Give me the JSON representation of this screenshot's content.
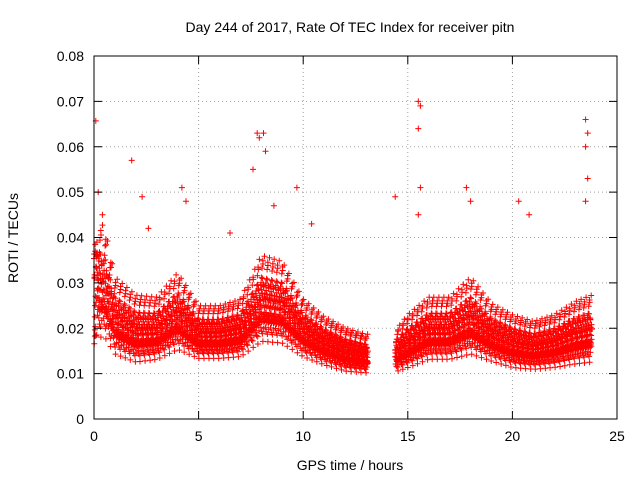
{
  "chart_data": {
    "type": "scatter",
    "title": "Day 244 of 2017, Rate Of TEC Index for receiver pitn",
    "xlabel": "GPS time / hours",
    "ylabel": "ROTI / TECUs",
    "xlim": [
      0,
      25
    ],
    "ylim": [
      0,
      0.08
    ],
    "x_ticks": [
      0,
      5,
      10,
      15,
      20,
      25
    ],
    "x_tick_labels": [
      "0",
      "5",
      "10",
      "15",
      "20",
      "25"
    ],
    "y_ticks": [
      0,
      0.01,
      0.02,
      0.03,
      0.04,
      0.05,
      0.06,
      0.07,
      0.08
    ],
    "y_tick_labels": [
      "0",
      "0.01",
      "0.02",
      "0.03",
      "0.04",
      "0.05",
      "0.06",
      "0.07",
      "0.08"
    ],
    "grid": true,
    "marker": "+",
    "color": "#ff0000",
    "data_gaps_hours": [
      [
        13.1,
        14.4
      ]
    ],
    "envelope": [
      {
        "t": 0.0,
        "base": 0.012,
        "spread": 0.025
      },
      {
        "t": 0.5,
        "base": 0.013,
        "spread": 0.023
      },
      {
        "t": 1.0,
        "base": 0.012,
        "spread": 0.016
      },
      {
        "t": 2.0,
        "base": 0.011,
        "spread": 0.014
      },
      {
        "t": 3.0,
        "base": 0.012,
        "spread": 0.013
      },
      {
        "t": 4.0,
        "base": 0.013,
        "spread": 0.016
      },
      {
        "t": 5.0,
        "base": 0.013,
        "spread": 0.011
      },
      {
        "t": 6.0,
        "base": 0.013,
        "spread": 0.011
      },
      {
        "t": 7.0,
        "base": 0.013,
        "spread": 0.012
      },
      {
        "t": 8.0,
        "base": 0.014,
        "spread": 0.018
      },
      {
        "t": 9.0,
        "base": 0.014,
        "spread": 0.017
      },
      {
        "t": 10.0,
        "base": 0.013,
        "spread": 0.012
      },
      {
        "t": 11.0,
        "base": 0.012,
        "spread": 0.01
      },
      {
        "t": 12.0,
        "base": 0.011,
        "spread": 0.009
      },
      {
        "t": 13.0,
        "base": 0.011,
        "spread": 0.008
      },
      {
        "t": 14.5,
        "base": 0.011,
        "spread": 0.009
      },
      {
        "t": 15.0,
        "base": 0.011,
        "spread": 0.011
      },
      {
        "t": 16.0,
        "base": 0.012,
        "spread": 0.013
      },
      {
        "t": 17.0,
        "base": 0.012,
        "spread": 0.013
      },
      {
        "t": 18.0,
        "base": 0.012,
        "spread": 0.016
      },
      {
        "t": 19.0,
        "base": 0.012,
        "spread": 0.012
      },
      {
        "t": 20.0,
        "base": 0.011,
        "spread": 0.011
      },
      {
        "t": 21.0,
        "base": 0.011,
        "spread": 0.01
      },
      {
        "t": 22.0,
        "base": 0.011,
        "spread": 0.011
      },
      {
        "t": 23.0,
        "base": 0.011,
        "spread": 0.013
      },
      {
        "t": 23.8,
        "base": 0.011,
        "spread": 0.014
      }
    ],
    "spikes": [
      {
        "x": 0.2,
        "y": 0.05
      },
      {
        "x": 0.4,
        "y": 0.045
      },
      {
        "x": 1.8,
        "y": 0.057
      },
      {
        "x": 2.3,
        "y": 0.049
      },
      {
        "x": 2.6,
        "y": 0.042
      },
      {
        "x": 4.2,
        "y": 0.051
      },
      {
        "x": 4.4,
        "y": 0.048
      },
      {
        "x": 6.5,
        "y": 0.041
      },
      {
        "x": 7.6,
        "y": 0.055
      },
      {
        "x": 7.8,
        "y": 0.063
      },
      {
        "x": 7.9,
        "y": 0.062
      },
      {
        "x": 8.1,
        "y": 0.063
      },
      {
        "x": 8.2,
        "y": 0.059
      },
      {
        "x": 8.6,
        "y": 0.047
      },
      {
        "x": 9.7,
        "y": 0.051
      },
      {
        "x": 10.4,
        "y": 0.043
      },
      {
        "x": 14.4,
        "y": 0.049
      },
      {
        "x": 15.5,
        "y": 0.07
      },
      {
        "x": 15.6,
        "y": 0.069
      },
      {
        "x": 15.5,
        "y": 0.064
      },
      {
        "x": 15.6,
        "y": 0.051
      },
      {
        "x": 15.5,
        "y": 0.045
      },
      {
        "x": 17.8,
        "y": 0.051
      },
      {
        "x": 18.0,
        "y": 0.048
      },
      {
        "x": 20.3,
        "y": 0.048
      },
      {
        "x": 20.8,
        "y": 0.045
      },
      {
        "x": 23.5,
        "y": 0.066
      },
      {
        "x": 23.6,
        "y": 0.063
      },
      {
        "x": 23.5,
        "y": 0.06
      },
      {
        "x": 23.6,
        "y": 0.053
      },
      {
        "x": 23.5,
        "y": 0.048
      }
    ],
    "sample_step_hours": 0.016,
    "points_per_step": 3
  }
}
